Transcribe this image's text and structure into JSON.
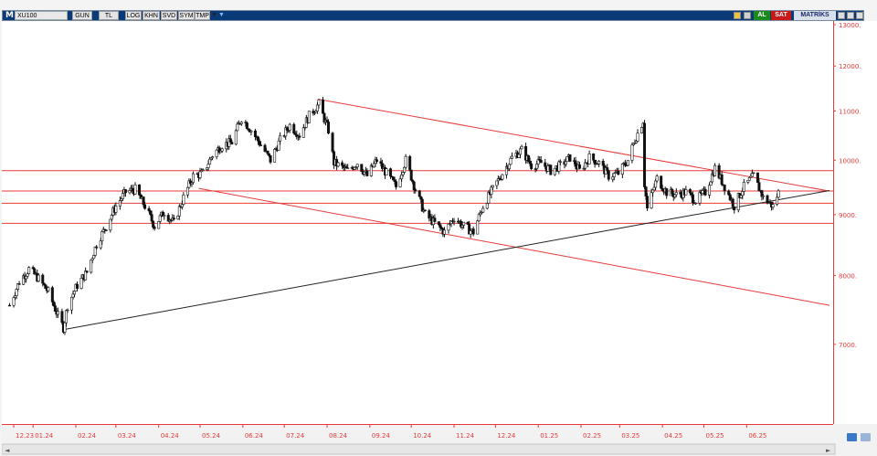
{
  "toolbar": {
    "logo": "M",
    "symbol": "XU100",
    "buttons": [
      "GUN",
      "TL",
      "LOG",
      "KHN",
      "SVD",
      "SYM",
      "TMP"
    ],
    "buy_label": "AL",
    "sell_label": "SAT",
    "matrix_label": "MATRİKS"
  },
  "colors": {
    "price": "#111111",
    "trend_red": "#e83a3a",
    "trend_black": "#222222",
    "axis_text": "#e83a3a",
    "toolbar_bg": "#0a3a78"
  },
  "chart_data": {
    "type": "candlestick",
    "scale": "log",
    "ylim": [
      6000,
      13000
    ],
    "y_ticks": [
      "13000.",
      "12000.",
      "11000.",
      "10000.",
      "9000.",
      "8000.",
      "7000."
    ],
    "x_ticks": [
      "12.23",
      "01.24",
      "02.24",
      "03.24",
      "04.24",
      "05.24",
      "06.24",
      "07.24",
      "08.24",
      "09.24",
      "10.24",
      "11.24",
      "12.24",
      "01.25",
      "02.25",
      "03.25",
      "04.25",
      "05.25",
      "06.25"
    ],
    "price_path": [
      [
        "2023-12-15",
        7550
      ],
      [
        "2023-12-22",
        7900
      ],
      [
        "2023-12-29",
        8100
      ],
      [
        "2024-01-05",
        7950
      ],
      [
        "2024-01-12",
        7750
      ],
      [
        "2024-01-19",
        7400
      ],
      [
        "2024-01-23",
        7230
      ],
      [
        "2024-01-26",
        7550
      ],
      [
        "2024-02-02",
        7850
      ],
      [
        "2024-02-09",
        8050
      ],
      [
        "2024-02-16",
        8500
      ],
      [
        "2024-02-23",
        8800
      ],
      [
        "2024-03-01",
        9150
      ],
      [
        "2024-03-08",
        9400
      ],
      [
        "2024-03-15",
        9450
      ],
      [
        "2024-03-22",
        9150
      ],
      [
        "2024-03-29",
        8800
      ],
      [
        "2024-04-05",
        9050
      ],
      [
        "2024-04-12",
        8850
      ],
      [
        "2024-04-19",
        9300
      ],
      [
        "2024-04-26",
        9700
      ],
      [
        "2024-05-03",
        9750
      ],
      [
        "2024-05-10",
        10100
      ],
      [
        "2024-05-17",
        10300
      ],
      [
        "2024-05-24",
        10350
      ],
      [
        "2024-05-31",
        10850
      ],
      [
        "2024-06-07",
        10600
      ],
      [
        "2024-06-14",
        10300
      ],
      [
        "2024-06-21",
        10000
      ],
      [
        "2024-06-28",
        10400
      ],
      [
        "2024-07-05",
        10700
      ],
      [
        "2024-07-12",
        10500
      ],
      [
        "2024-07-19",
        10900
      ],
      [
        "2024-07-26",
        11150
      ],
      [
        "2024-08-02",
        10600
      ],
      [
        "2024-08-06",
        9950
      ],
      [
        "2024-08-16",
        9800
      ],
      [
        "2024-08-23",
        9950
      ],
      [
        "2024-08-30",
        9700
      ],
      [
        "2024-09-06",
        10000
      ],
      [
        "2024-09-13",
        9750
      ],
      [
        "2024-09-20",
        9500
      ],
      [
        "2024-09-27",
        10000
      ],
      [
        "2024-10-04",
        9450
      ],
      [
        "2024-10-11",
        9000
      ],
      [
        "2024-10-18",
        8850
      ],
      [
        "2024-10-25",
        8700
      ],
      [
        "2024-11-01",
        8950
      ],
      [
        "2024-11-08",
        8800
      ],
      [
        "2024-11-15",
        8700
      ],
      [
        "2024-11-22",
        9150
      ],
      [
        "2024-11-29",
        9450
      ],
      [
        "2024-12-06",
        9750
      ],
      [
        "2024-12-13",
        10050
      ],
      [
        "2024-12-20",
        10200
      ],
      [
        "2024-12-27",
        9900
      ],
      [
        "2025-01-03",
        9950
      ],
      [
        "2025-01-10",
        9800
      ],
      [
        "2025-01-17",
        9900
      ],
      [
        "2025-01-24",
        10050
      ],
      [
        "2025-01-31",
        9800
      ],
      [
        "2025-02-07",
        10050
      ],
      [
        "2025-02-14",
        9950
      ],
      [
        "2025-02-21",
        9700
      ],
      [
        "2025-02-28",
        9750
      ],
      [
        "2025-03-07",
        10000
      ],
      [
        "2025-03-12",
        10400
      ],
      [
        "2025-03-18",
        10800
      ],
      [
        "2025-03-19",
        9550
      ],
      [
        "2025-03-21",
        9100
      ],
      [
        "2025-03-28",
        9650
      ],
      [
        "2025-04-04",
        9400
      ],
      [
        "2025-04-11",
        9350
      ],
      [
        "2025-04-18",
        9400
      ],
      [
        "2025-04-25",
        9250
      ],
      [
        "2025-05-02",
        9400
      ],
      [
        "2025-05-09",
        9850
      ],
      [
        "2025-05-16",
        9500
      ],
      [
        "2025-05-23",
        9150
      ],
      [
        "2025-05-30",
        9500
      ],
      [
        "2025-06-06",
        9700
      ],
      [
        "2025-06-13",
        9300
      ],
      [
        "2025-06-20",
        9150
      ],
      [
        "2025-06-25",
        9450
      ]
    ],
    "horizontal_levels": [
      9800,
      9420,
      9200,
      8850
    ],
    "trendlines": [
      {
        "color": "red",
        "points": [
          [
            "2024-07-26",
            11250
          ],
          [
            "2025-07-31",
            9420
          ]
        ]
      },
      {
        "color": "red",
        "points": [
          [
            "2024-04-30",
            9470
          ],
          [
            "2025-07-31",
            7550
          ]
        ]
      },
      {
        "color": "black",
        "points": [
          [
            "2024-01-22",
            7200
          ],
          [
            "2025-03-21",
            8850
          ],
          [
            "2025-07-31",
            9430
          ]
        ]
      }
    ]
  }
}
